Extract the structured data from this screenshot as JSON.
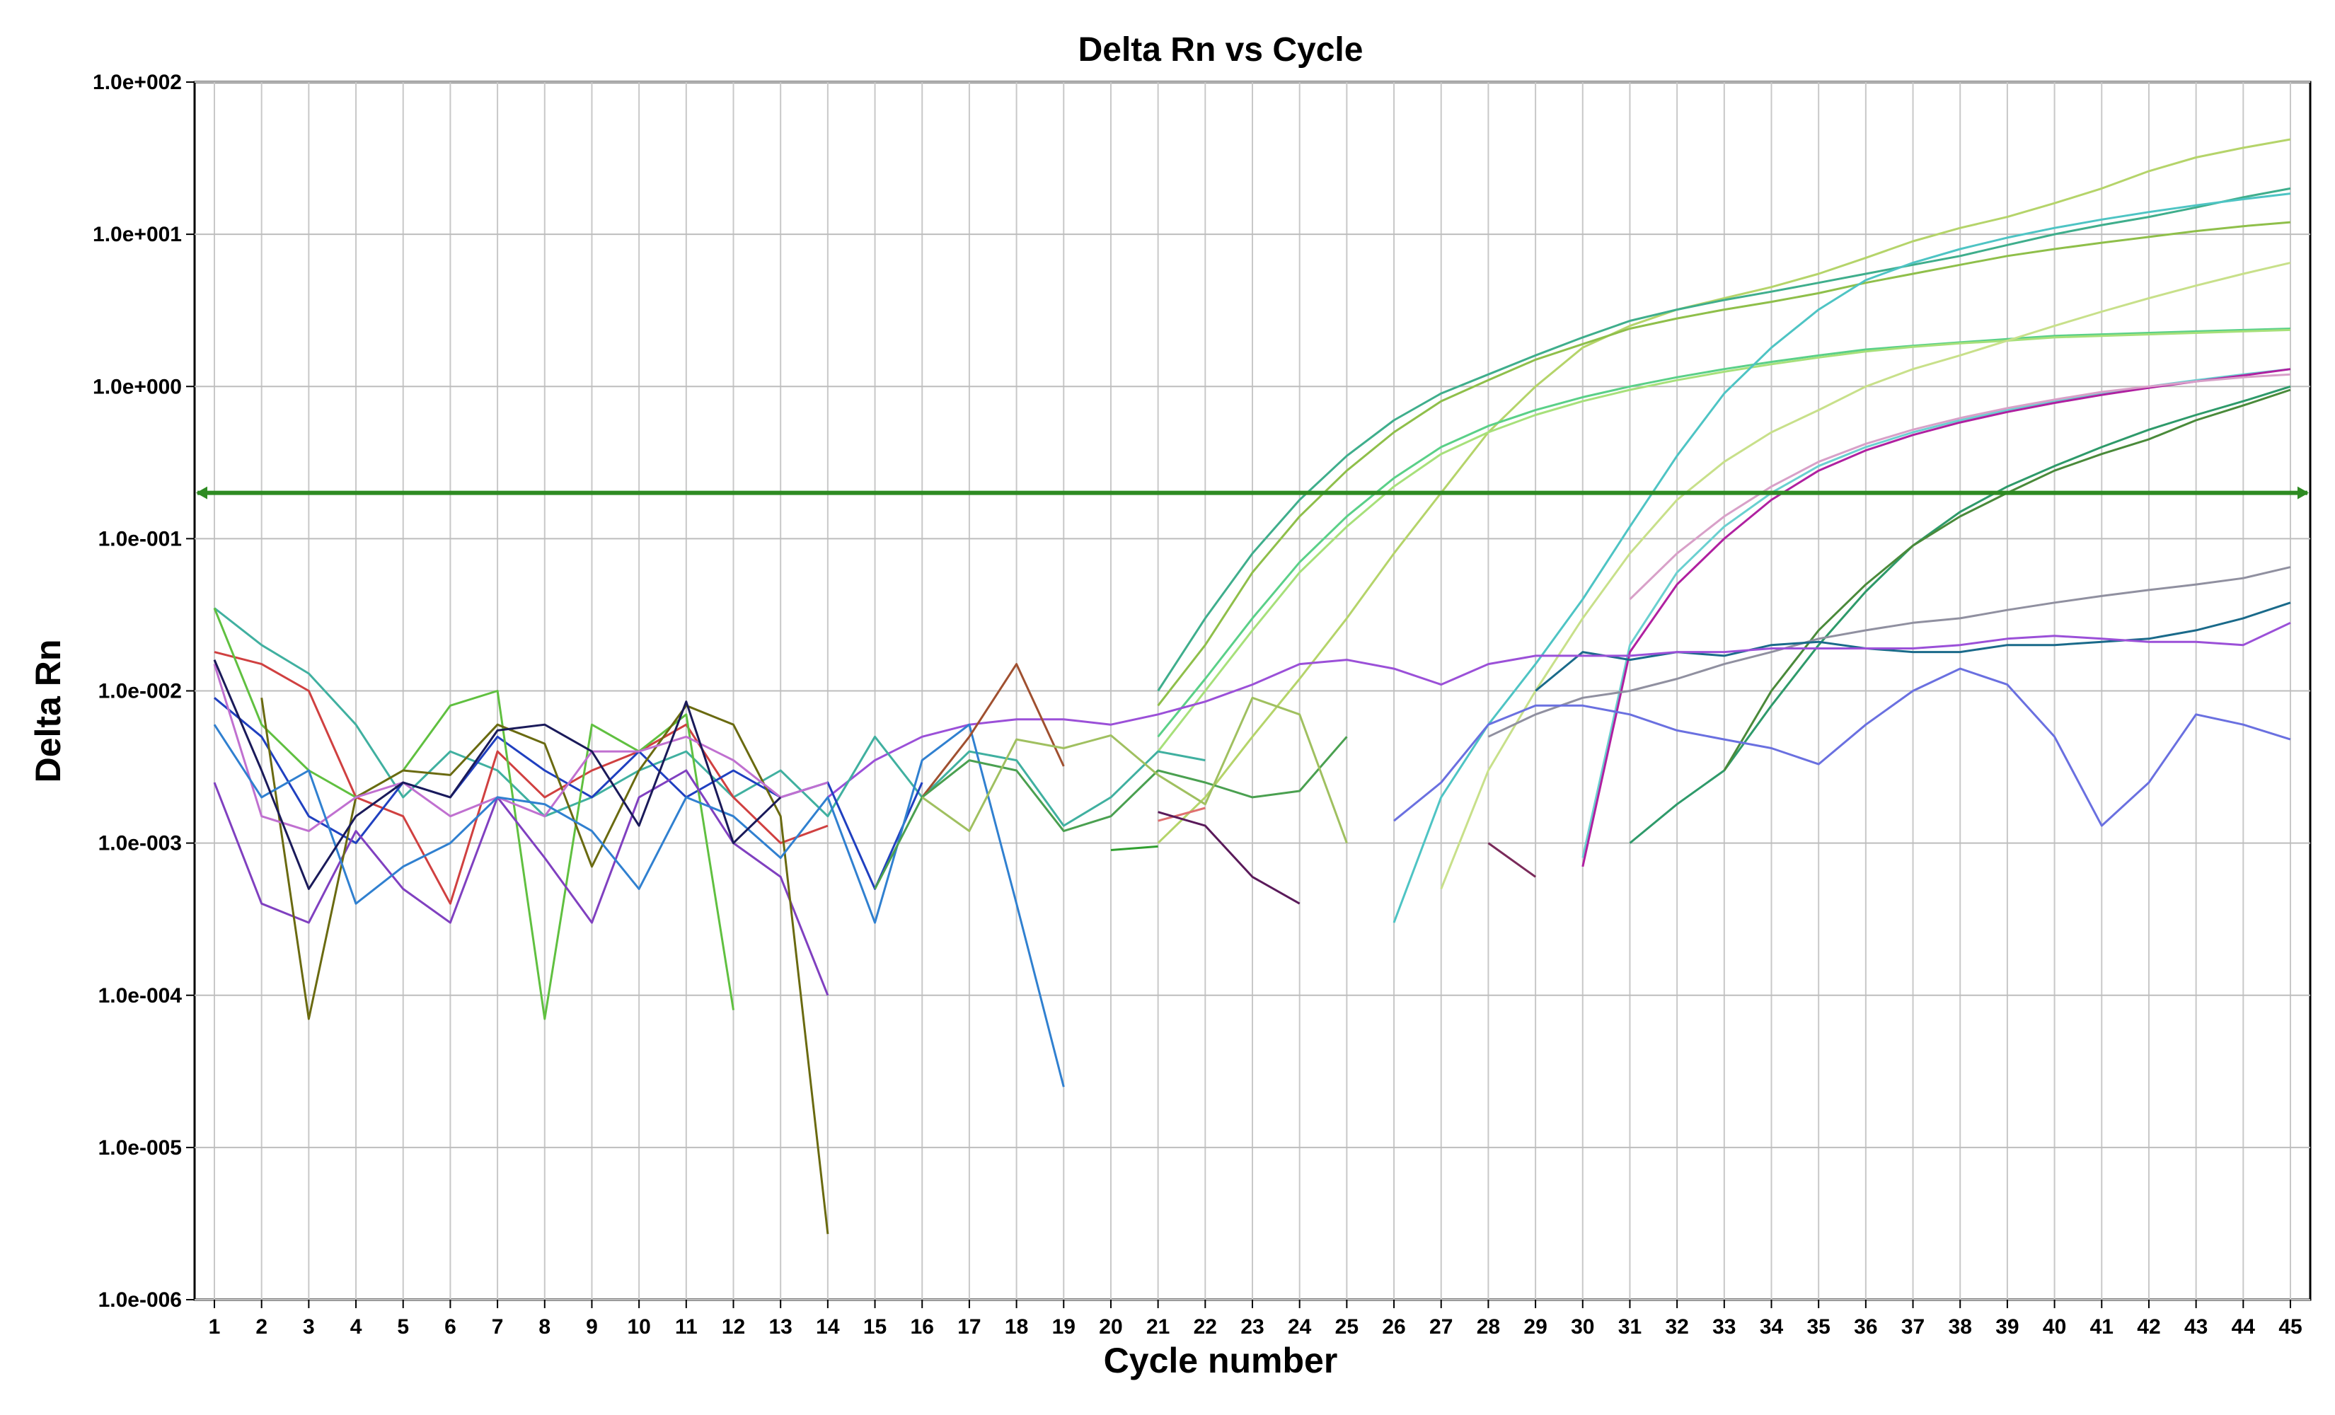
{
  "chart_data": {
    "type": "line",
    "title": "Delta Rn vs Cycle",
    "xlabel": "Cycle number",
    "ylabel": "Delta Rn",
    "yscale": "log",
    "ylim": [
      1e-06,
      100
    ],
    "xlim": [
      1,
      45
    ],
    "grid": true,
    "legend": "none",
    "x_ticks": [
      1,
      2,
      3,
      4,
      5,
      6,
      7,
      8,
      9,
      10,
      11,
      12,
      13,
      14,
      15,
      16,
      17,
      18,
      19,
      20,
      21,
      22,
      23,
      24,
      25,
      26,
      27,
      28,
      29,
      30,
      31,
      32,
      33,
      34,
      35,
      36,
      37,
      38,
      39,
      40,
      41,
      42,
      43,
      44,
      45
    ],
    "y_ticks": [
      {
        "value": 100,
        "label": "1.0e+002"
      },
      {
        "value": 10,
        "label": "1.0e+001"
      },
      {
        "value": 1,
        "label": "1.0e+000"
      },
      {
        "value": 0.1,
        "label": "1.0e-001"
      },
      {
        "value": 0.01,
        "label": "1.0e-002"
      },
      {
        "value": 0.001,
        "label": "1.0e-003"
      },
      {
        "value": 0.0001,
        "label": "1.0e-004"
      },
      {
        "value": 1e-05,
        "label": "1.0e-005"
      },
      {
        "value": 1e-06,
        "label": "1.0e-006"
      }
    ],
    "threshold": {
      "value": 0.2,
      "color": "#2e8b22"
    },
    "series": [
      {
        "color": "#b5d46a",
        "x": [
          21,
          22,
          23,
          24,
          25,
          26,
          27,
          28,
          29,
          30,
          31,
          32,
          33,
          34,
          35,
          36,
          37,
          38,
          39,
          40,
          41,
          42,
          43,
          44,
          45
        ],
        "values": [
          0.001,
          0.002,
          0.005,
          0.012,
          0.03,
          0.08,
          0.2,
          0.5,
          1.0,
          1.8,
          2.5,
          3.2,
          3.8,
          4.5,
          5.5,
          7.0,
          9.0,
          11,
          13,
          16,
          20,
          26,
          32,
          37,
          42
        ]
      },
      {
        "color": "#3fae8c",
        "x": [
          21,
          22,
          23,
          24,
          25,
          26,
          27,
          28,
          29,
          30,
          31,
          32,
          33,
          34,
          35,
          36,
          37,
          38,
          39,
          40,
          41,
          42,
          43,
          44,
          45
        ],
        "values": [
          0.01,
          0.03,
          0.08,
          0.18,
          0.35,
          0.6,
          0.9,
          1.2,
          1.6,
          2.1,
          2.7,
          3.2,
          3.7,
          4.2,
          4.8,
          5.5,
          6.3,
          7.2,
          8.5,
          10,
          11.5,
          13,
          15,
          17.5,
          20
        ]
      },
      {
        "color": "#8fbf4a",
        "x": [
          21,
          22,
          23,
          24,
          25,
          26,
          27,
          28,
          29,
          30,
          31,
          32,
          33,
          34,
          35,
          36,
          37,
          38,
          39,
          40,
          41,
          42,
          43,
          44,
          45
        ],
        "values": [
          0.008,
          0.02,
          0.06,
          0.14,
          0.28,
          0.5,
          0.8,
          1.1,
          1.5,
          1.9,
          2.4,
          2.8,
          3.2,
          3.6,
          4.1,
          4.8,
          5.5,
          6.3,
          7.2,
          8.0,
          8.8,
          9.6,
          10.5,
          11.3,
          12
        ]
      },
      {
        "color": "#5ad088",
        "x": [
          21,
          22,
          23,
          24,
          25,
          26,
          27,
          28,
          29,
          30,
          31,
          32,
          33,
          34,
          35,
          36,
          37,
          38,
          39,
          40,
          41,
          42,
          43,
          44,
          45
        ],
        "values": [
          0.005,
          0.012,
          0.03,
          0.07,
          0.14,
          0.25,
          0.4,
          0.55,
          0.7,
          0.85,
          1.0,
          1.15,
          1.3,
          1.45,
          1.6,
          1.75,
          1.85,
          1.95,
          2.05,
          2.15,
          2.2,
          2.25,
          2.3,
          2.35,
          2.4
        ]
      },
      {
        "color": "#a7e07a",
        "x": [
          21,
          22,
          23,
          24,
          25,
          26,
          27,
          28,
          29,
          30,
          31,
          32,
          33,
          34,
          35,
          36,
          37,
          38,
          39,
          40,
          41,
          42,
          43,
          44,
          45
        ],
        "values": [
          0.004,
          0.01,
          0.025,
          0.06,
          0.12,
          0.22,
          0.36,
          0.5,
          0.65,
          0.8,
          0.95,
          1.1,
          1.25,
          1.4,
          1.55,
          1.7,
          1.82,
          1.92,
          2.0,
          2.1,
          2.15,
          2.2,
          2.25,
          2.3,
          2.35
        ]
      },
      {
        "color": "#4ec4c4",
        "x": [
          26,
          27,
          28,
          29,
          30,
          31,
          32,
          33,
          34,
          35,
          36,
          37,
          38,
          39,
          40,
          41,
          42,
          43,
          44,
          45
        ],
        "values": [
          0.0003,
          0.002,
          0.006,
          0.015,
          0.04,
          0.12,
          0.35,
          0.9,
          1.8,
          3.2,
          5.0,
          6.5,
          8.0,
          9.5,
          11,
          12.5,
          14,
          15.5,
          17,
          18.5
        ]
      },
      {
        "color": "#c8e08a",
        "x": [
          27,
          28,
          29,
          30,
          31,
          32,
          33,
          34,
          35,
          36,
          37,
          38,
          39,
          40,
          41,
          42,
          43,
          44,
          45
        ],
        "values": [
          0.0005,
          0.003,
          0.01,
          0.03,
          0.08,
          0.18,
          0.32,
          0.5,
          0.7,
          1.0,
          1.3,
          1.6,
          2.0,
          2.5,
          3.1,
          3.8,
          4.6,
          5.5,
          6.5
        ]
      },
      {
        "color": "#6ad0d0",
        "x": [
          30,
          31,
          32,
          33,
          34,
          35,
          36,
          37,
          38,
          39,
          40,
          41,
          42,
          43,
          44,
          45
        ],
        "values": [
          0.0008,
          0.02,
          0.06,
          0.12,
          0.2,
          0.3,
          0.4,
          0.5,
          0.6,
          0.7,
          0.8,
          0.9,
          1.0,
          1.1,
          1.2,
          1.3
        ]
      },
      {
        "color": "#b020a0",
        "x": [
          30,
          31,
          32,
          33,
          34,
          35,
          36,
          37,
          38,
          39,
          40,
          41,
          42,
          43,
          44,
          45
        ],
        "values": [
          0.0007,
          0.018,
          0.05,
          0.1,
          0.18,
          0.28,
          0.38,
          0.48,
          0.58,
          0.68,
          0.78,
          0.88,
          0.98,
          1.08,
          1.18,
          1.3
        ]
      },
      {
        "color": "#d8a0c8",
        "x": [
          31,
          32,
          33,
          34,
          35,
          36,
          37,
          38,
          39,
          40,
          41,
          42,
          43,
          44,
          45
        ],
        "values": [
          0.04,
          0.08,
          0.14,
          0.22,
          0.32,
          0.42,
          0.52,
          0.62,
          0.72,
          0.82,
          0.92,
          1.0,
          1.08,
          1.15,
          1.2
        ]
      },
      {
        "color": "#2e9a6a",
        "x": [
          31,
          32,
          33,
          34,
          35,
          36,
          37,
          38,
          39,
          40,
          41,
          42,
          43,
          44,
          45
        ],
        "values": [
          0.001,
          0.0018,
          0.003,
          0.008,
          0.02,
          0.045,
          0.09,
          0.15,
          0.22,
          0.3,
          0.4,
          0.52,
          0.65,
          0.8,
          1.0
        ]
      },
      {
        "color": "#4a8a3a",
        "x": [
          33,
          34,
          35,
          36,
          37,
          38,
          39,
          40,
          41,
          42,
          43,
          44,
          45
        ],
        "values": [
          0.003,
          0.01,
          0.025,
          0.05,
          0.09,
          0.14,
          0.2,
          0.28,
          0.36,
          0.45,
          0.6,
          0.75,
          0.95
        ]
      },
      {
        "color": "#9090a0",
        "x": [
          28,
          29,
          30,
          31,
          32,
          33,
          34,
          35,
          36,
          37,
          38,
          39,
          40,
          41,
          42,
          43,
          44,
          45
        ],
        "values": [
          0.005,
          0.007,
          0.009,
          0.01,
          0.012,
          0.015,
          0.018,
          0.022,
          0.025,
          0.028,
          0.03,
          0.034,
          0.038,
          0.042,
          0.046,
          0.05,
          0.055,
          0.065
        ]
      },
      {
        "color": "#1a6a8a",
        "x": [
          29,
          30,
          31,
          32,
          33,
          34,
          35,
          36,
          37,
          38,
          39,
          40,
          41,
          42,
          43,
          44,
          45
        ],
        "values": [
          0.01,
          0.018,
          0.016,
          0.018,
          0.017,
          0.02,
          0.021,
          0.019,
          0.018,
          0.018,
          0.02,
          0.02,
          0.021,
          0.022,
          0.025,
          0.03,
          0.038
        ]
      },
      {
        "color": "#9b50d8",
        "x": [
          14,
          15,
          16,
          17,
          18,
          19,
          20,
          21,
          22,
          23,
          24,
          25,
          26,
          27,
          28,
          29,
          30,
          31,
          32,
          33,
          34,
          35,
          36,
          37,
          38,
          39,
          40,
          41,
          42,
          43,
          44,
          45
        ],
        "values": [
          0.002,
          0.0035,
          0.005,
          0.006,
          0.0065,
          0.0065,
          0.006,
          0.007,
          0.0085,
          0.011,
          0.015,
          0.016,
          0.014,
          0.011,
          0.015,
          0.017,
          0.017,
          0.017,
          0.018,
          0.018,
          0.019,
          0.019,
          0.019,
          0.019,
          0.02,
          0.022,
          0.023,
          0.022,
          0.021,
          0.021,
          0.02,
          0.028
        ]
      },
      {
        "color": "#6a70e0",
        "x": [
          26,
          27,
          28,
          29,
          30,
          31,
          32,
          33,
          34,
          35,
          36,
          37,
          38,
          39,
          40,
          41,
          42,
          43,
          44,
          45
        ],
        "values": [
          0.0014,
          0.0025,
          0.006,
          0.008,
          0.008,
          0.007,
          0.0055,
          0.0048,
          0.0042,
          0.0033,
          0.006,
          0.01,
          0.014,
          0.011,
          0.005,
          0.0013,
          0.0025,
          0.007,
          0.006,
          0.0048
        ]
      },
      {
        "color": "#40b0a0",
        "x": [
          1,
          2,
          3,
          4,
          5,
          6,
          7,
          8,
          9,
          10,
          11,
          12,
          13,
          14,
          15,
          16,
          17,
          18,
          19,
          20,
          21,
          22
        ],
        "values": [
          0.035,
          0.02,
          0.013,
          0.006,
          0.002,
          0.004,
          0.003,
          0.0015,
          0.002,
          0.003,
          0.004,
          0.002,
          0.003,
          0.0015,
          0.005,
          0.002,
          0.004,
          0.0035,
          0.0013,
          0.002,
          0.004,
          0.0035
        ]
      },
      {
        "color": "#d04040",
        "x": [
          1,
          2,
          3,
          4,
          5,
          6,
          7,
          8,
          9,
          10,
          11,
          12,
          13,
          14
        ],
        "values": [
          0.018,
          0.015,
          0.01,
          0.002,
          0.0015,
          0.0004,
          0.004,
          0.002,
          0.003,
          0.004,
          0.006,
          0.002,
          0.001,
          0.0013
        ]
      },
      {
        "color": "#2040c0",
        "x": [
          1,
          2,
          3,
          4,
          5,
          6,
          7,
          8,
          9,
          10,
          11,
          12,
          13,
          14,
          15,
          16
        ],
        "values": [
          0.009,
          0.005,
          0.0015,
          0.001,
          0.0025,
          0.002,
          0.005,
          0.003,
          0.002,
          0.004,
          0.002,
          0.003,
          0.002,
          0.0025,
          0.0005,
          0.0025
        ]
      },
      {
        "color": "#60c040",
        "x": [
          1,
          2,
          3,
          4,
          5,
          6,
          7,
          8,
          9,
          10,
          11,
          12
        ],
        "values": [
          0.035,
          0.006,
          0.003,
          0.002,
          0.003,
          0.008,
          0.01,
          7e-05,
          0.006,
          0.004,
          0.007,
          8e-05
        ]
      },
      {
        "color": "#8040c0",
        "x": [
          1,
          2,
          3,
          4,
          5,
          6,
          7,
          8,
          9,
          10,
          11,
          12,
          13,
          14
        ],
        "values": [
          0.0025,
          0.0004,
          0.0003,
          0.0012,
          0.0005,
          0.0003,
          0.002,
          0.0008,
          0.0003,
          0.002,
          0.003,
          0.001,
          0.0006,
          0.0001
        ]
      },
      {
        "color": "#6a6a10",
        "x": [
          2,
          3,
          4,
          5,
          6,
          7,
          8,
          9,
          10,
          11,
          12,
          13,
          14
        ],
        "values": [
          0.009,
          7e-05,
          0.002,
          0.003,
          0.0028,
          0.006,
          0.0045,
          0.0007,
          0.003,
          0.008,
          0.006,
          0.0015,
          2.7e-06
        ]
      },
      {
        "color": "#c070d0",
        "x": [
          1,
          2,
          3,
          4,
          5,
          6,
          7,
          8,
          9,
          10,
          11,
          12,
          13,
          14
        ],
        "values": [
          0.015,
          0.0015,
          0.0012,
          0.002,
          0.0025,
          0.0015,
          0.002,
          0.0015,
          0.004,
          0.004,
          0.005,
          0.0035,
          0.002,
          0.0025
        ]
      },
      {
        "color": "#3080d0",
        "x": [
          1,
          2,
          3,
          4,
          5,
          6,
          7,
          8,
          9,
          10,
          11,
          12,
          13,
          14,
          15,
          16,
          17,
          18,
          19
        ],
        "values": [
          0.006,
          0.002,
          0.003,
          0.0004,
          0.0007,
          0.001,
          0.002,
          0.0018,
          0.0012,
          0.0005,
          0.002,
          0.0015,
          0.0008,
          0.002,
          0.0003,
          0.0035,
          0.006,
          0.0004,
          2.5e-05
        ]
      },
      {
        "color": "#a05030",
        "x": [
          16,
          17,
          18,
          19
        ],
        "values": [
          0.002,
          0.005,
          0.015,
          0.0032
        ]
      },
      {
        "color": "#4aa050",
        "x": [
          15,
          16,
          17,
          18,
          19,
          20,
          21,
          22,
          23,
          24,
          25
        ],
        "values": [
          0.0005,
          0.002,
          0.0035,
          0.003,
          0.0012,
          0.0015,
          0.003,
          0.0025,
          0.002,
          0.0022,
          0.005
        ]
      },
      {
        "color": "#a0c060",
        "x": [
          16,
          17,
          18,
          19,
          20,
          21,
          22,
          23,
          24,
          25
        ],
        "values": [
          0.002,
          0.0012,
          0.0048,
          0.0042,
          0.0051,
          0.0028,
          0.0018,
          0.009,
          0.007,
          0.001
        ]
      },
      {
        "color": "#1a1a5a",
        "x": [
          1,
          2,
          3,
          4,
          5,
          6,
          7,
          8,
          9,
          10,
          11,
          12,
          13
        ],
        "values": [
          0.016,
          0.003,
          0.0005,
          0.0015,
          0.0025,
          0.002,
          0.0055,
          0.006,
          0.004,
          0.0013,
          0.0085,
          0.001,
          0.002
        ]
      },
      {
        "color": "#e07070",
        "x": [
          21,
          22
        ],
        "values": [
          0.0014,
          0.0017
        ]
      },
      {
        "color": "#5a1a5a",
        "x": [
          21,
          22,
          23,
          24
        ],
        "values": [
          0.0016,
          0.0013,
          0.0006,
          0.0004
        ]
      },
      {
        "color": "#30a030",
        "x": [
          20,
          21
        ],
        "values": [
          0.0009,
          0.00095
        ]
      },
      {
        "color": "#7a2a5a",
        "x": [
          28,
          29
        ],
        "values": [
          0.001,
          0.0006
        ]
      }
    ]
  }
}
